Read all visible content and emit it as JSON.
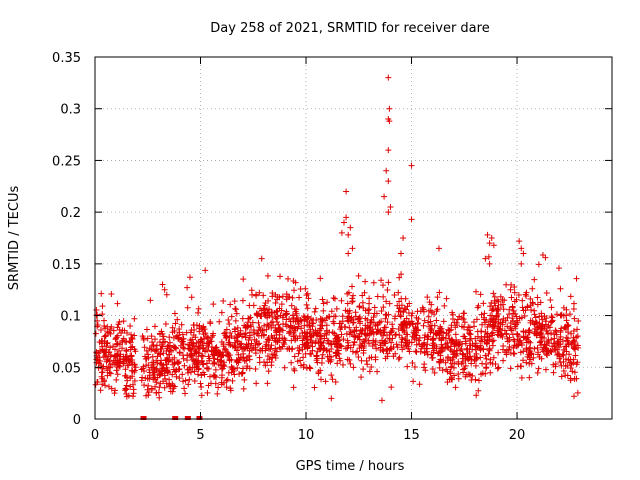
{
  "chart_data": {
    "type": "scatter",
    "title": "Day 258 of 2021, SRMTID for receiver dare",
    "xlabel": "GPS time / hours",
    "ylabel": "SRMTID / TECUs",
    "xlim": [
      0,
      24.5
    ],
    "ylim": [
      0,
      0.35
    ],
    "xticks": [
      0,
      5,
      10,
      15,
      20
    ],
    "xtick_labels": [
      "0",
      "5",
      "10",
      "15",
      "20"
    ],
    "yticks": [
      0,
      0.05,
      0.1,
      0.15,
      0.2,
      0.25,
      0.3,
      0.35
    ],
    "ytick_labels": [
      "0",
      "0.05",
      "0.1",
      "0.15",
      "0.2",
      "0.25",
      "0.3",
      "0.35"
    ],
    "grid": true,
    "marker": "+",
    "color": "#e00000",
    "trend": [
      [
        0.0,
        0.07
      ],
      [
        0.5,
        0.062
      ],
      [
        1.0,
        0.06
      ],
      [
        1.5,
        0.057
      ],
      [
        2.0,
        0.05
      ],
      [
        2.5,
        0.048
      ],
      [
        3.0,
        0.052
      ],
      [
        3.5,
        0.06
      ],
      [
        4.0,
        0.064
      ],
      [
        4.5,
        0.06
      ],
      [
        5.0,
        0.068
      ],
      [
        5.5,
        0.064
      ],
      [
        6.0,
        0.063
      ],
      [
        6.5,
        0.068
      ],
      [
        7.0,
        0.072
      ],
      [
        7.5,
        0.08
      ],
      [
        8.0,
        0.084
      ],
      [
        8.5,
        0.088
      ],
      [
        9.0,
        0.09
      ],
      [
        9.5,
        0.086
      ],
      [
        10.0,
        0.08
      ],
      [
        10.5,
        0.074
      ],
      [
        11.0,
        0.072
      ],
      [
        11.5,
        0.078
      ],
      [
        12.0,
        0.09
      ],
      [
        12.5,
        0.086
      ],
      [
        13.0,
        0.082
      ],
      [
        13.5,
        0.08
      ],
      [
        14.0,
        0.084
      ],
      [
        14.5,
        0.092
      ],
      [
        15.0,
        0.086
      ],
      [
        15.5,
        0.082
      ],
      [
        16.0,
        0.076
      ],
      [
        16.5,
        0.072
      ],
      [
        17.0,
        0.07
      ],
      [
        17.5,
        0.066
      ],
      [
        18.0,
        0.068
      ],
      [
        18.5,
        0.072
      ],
      [
        19.0,
        0.088
      ],
      [
        19.5,
        0.086
      ],
      [
        20.0,
        0.084
      ],
      [
        20.5,
        0.082
      ],
      [
        21.0,
        0.08
      ],
      [
        21.5,
        0.078
      ],
      [
        22.0,
        0.075
      ],
      [
        22.5,
        0.072
      ],
      [
        22.9,
        0.07
      ]
    ],
    "spread": 0.018,
    "n_points_approx": 2300,
    "notable_points": [
      {
        "x": 13.9,
        "y": 0.33
      },
      {
        "x": 13.95,
        "y": 0.3
      },
      {
        "x": 13.9,
        "y": 0.29
      },
      {
        "x": 13.95,
        "y": 0.288
      },
      {
        "x": 13.9,
        "y": 0.26
      },
      {
        "x": 13.8,
        "y": 0.24
      },
      {
        "x": 13.9,
        "y": 0.23
      },
      {
        "x": 13.7,
        "y": 0.215
      },
      {
        "x": 14.0,
        "y": 0.205
      },
      {
        "x": 13.9,
        "y": 0.2
      },
      {
        "x": 15.0,
        "y": 0.245
      },
      {
        "x": 15.0,
        "y": 0.193
      },
      {
        "x": 14.6,
        "y": 0.175
      },
      {
        "x": 14.5,
        "y": 0.16
      },
      {
        "x": 11.9,
        "y": 0.22
      },
      {
        "x": 11.9,
        "y": 0.195
      },
      {
        "x": 11.8,
        "y": 0.19
      },
      {
        "x": 12.1,
        "y": 0.185
      },
      {
        "x": 11.7,
        "y": 0.18
      },
      {
        "x": 12.0,
        "y": 0.178
      },
      {
        "x": 12.2,
        "y": 0.165
      },
      {
        "x": 12.0,
        "y": 0.16
      },
      {
        "x": 18.6,
        "y": 0.178
      },
      {
        "x": 18.8,
        "y": 0.175
      },
      {
        "x": 18.7,
        "y": 0.17
      },
      {
        "x": 18.9,
        "y": 0.168
      },
      {
        "x": 18.5,
        "y": 0.155
      },
      {
        "x": 18.7,
        "y": 0.15
      },
      {
        "x": 20.1,
        "y": 0.172
      },
      {
        "x": 20.2,
        "y": 0.165
      },
      {
        "x": 20.3,
        "y": 0.16
      },
      {
        "x": 20.2,
        "y": 0.15
      },
      {
        "x": 16.3,
        "y": 0.165
      },
      {
        "x": 7.9,
        "y": 0.155
      },
      {
        "x": 4.5,
        "y": 0.137
      },
      {
        "x": 3.2,
        "y": 0.13
      },
      {
        "x": 3.3,
        "y": 0.125
      },
      {
        "x": 13.6,
        "y": 0.018
      },
      {
        "x": 11.2,
        "y": 0.02
      },
      {
        "x": 1.8,
        "y": 0.022
      },
      {
        "x": 22.7,
        "y": 0.022
      }
    ],
    "zero_points": [
      {
        "x": 2.3,
        "y": 0
      },
      {
        "x": 3.8,
        "y": 0
      },
      {
        "x": 4.4,
        "y": 0
      },
      {
        "x": 4.95,
        "y": 0
      }
    ]
  }
}
